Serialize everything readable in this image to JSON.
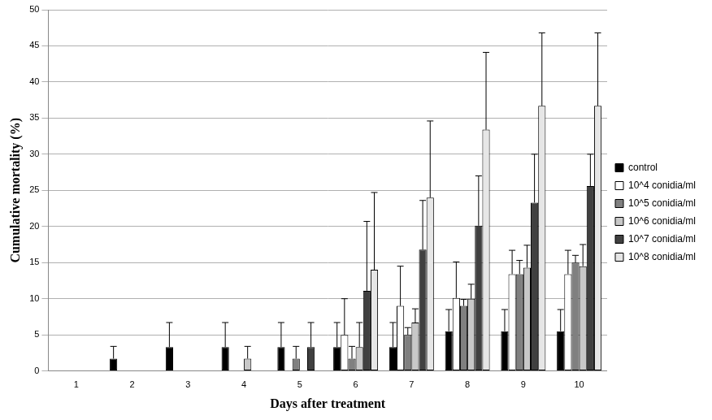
{
  "chart_data": {
    "type": "bar",
    "x_label": "Days after treatment",
    "y_label": "Cumulative mortality (%)",
    "categories": [
      "1",
      "2",
      "3",
      "4",
      "5",
      "6",
      "7",
      "8",
      "9",
      "10"
    ],
    "series": [
      {
        "name": "control",
        "color": "#000000",
        "values": [
          0,
          1.7,
          3.3,
          3.3,
          3.3,
          3.3,
          3.3,
          5.5,
          5.5,
          5.5
        ],
        "errors": [
          0,
          1.7,
          3.4,
          3.4,
          3.4,
          3.4,
          3.4,
          3.0,
          3.0,
          3.0
        ]
      },
      {
        "name": "10^4 conidia/ml",
        "color": "#ffffff",
        "values": [
          0,
          0,
          0,
          0,
          0,
          5.0,
          9.0,
          10.1,
          13.4,
          13.4
        ],
        "errors": [
          0,
          0,
          0,
          0,
          0,
          5.0,
          5.5,
          5.0,
          3.3,
          3.3
        ]
      },
      {
        "name": "10^5 conidia/ml",
        "color": "#808080",
        "values": [
          0,
          0,
          0,
          0,
          1.7,
          1.7,
          5.0,
          9.0,
          13.4,
          15.0
        ],
        "errors": [
          0,
          0,
          0,
          0,
          1.7,
          1.7,
          1.0,
          0.9,
          1.9,
          1.0
        ]
      },
      {
        "name": "10^6 conidia/ml",
        "color": "#c8c8c8",
        "values": [
          0,
          0,
          0,
          1.7,
          0,
          3.3,
          6.7,
          10.0,
          14.3,
          14.5
        ],
        "errors": [
          0,
          0,
          0,
          1.7,
          0,
          3.4,
          1.9,
          2.0,
          3.1,
          3.0
        ]
      },
      {
        "name": "10^7 conidia/ml",
        "color": "#404040",
        "values": [
          0,
          0,
          0,
          0,
          3.3,
          11.1,
          16.8,
          20.1,
          23.3,
          25.6
        ],
        "errors": [
          0,
          0,
          0,
          0,
          3.4,
          9.6,
          6.8,
          6.9,
          6.7,
          4.4
        ]
      },
      {
        "name": "10^8 conidia/ml",
        "color": "#e6e6e6",
        "values": [
          0,
          0,
          0,
          0,
          0,
          14.0,
          24.0,
          33.4,
          36.7,
          36.7
        ],
        "errors": [
          0,
          0,
          0,
          0,
          0,
          10.7,
          10.6,
          10.7,
          10.1,
          10.1
        ]
      }
    ],
    "ylim": [
      0,
      50
    ],
    "yticks": [
      0,
      5,
      10,
      15,
      20,
      25,
      30,
      35,
      40,
      45,
      50
    ],
    "grid": true,
    "legend": "right"
  }
}
